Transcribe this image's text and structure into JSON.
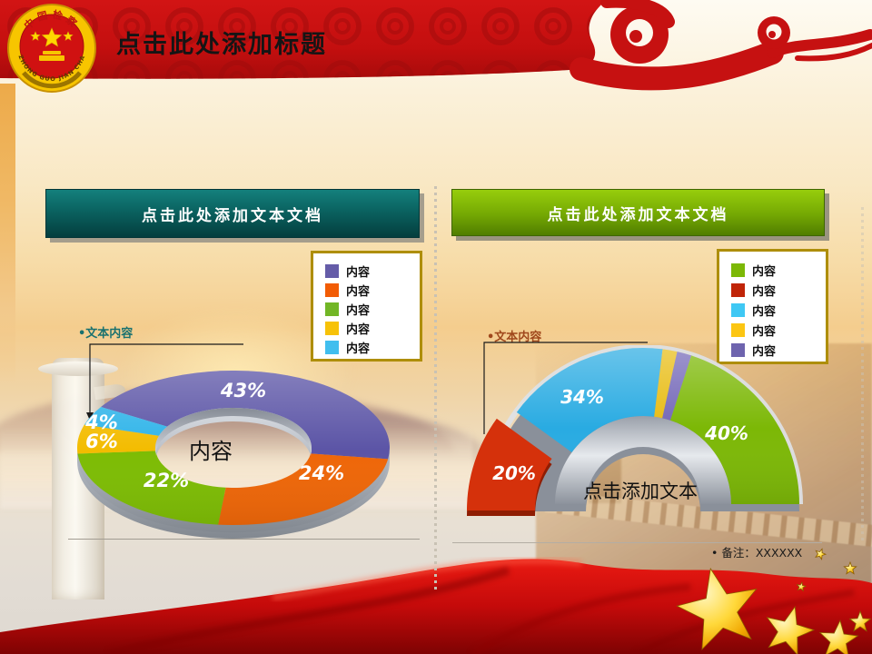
{
  "banner": {
    "title": "点击此处添加标题",
    "emblem": {
      "top_text": "中国检察",
      "bottom_text": "ZHONG GUO JIAN CHA"
    }
  },
  "left_panel": {
    "header_label": "点击此处添加文本文档",
    "callout_label": "•文本内容",
    "legend": {
      "items": [
        {
          "label": "内容",
          "color": "#655CA8"
        },
        {
          "label": "内容",
          "color": "#F25C05"
        },
        {
          "label": "内容",
          "color": "#72B626"
        },
        {
          "label": "内容",
          "color": "#F7C208"
        },
        {
          "label": "内容",
          "color": "#41BEEE"
        }
      ]
    }
  },
  "right_panel": {
    "header_label": "点击此处添加文本文档",
    "callout_label": "•文本内容",
    "note": "• 备注：XXXXXX",
    "legend": {
      "items": [
        {
          "label": "内容",
          "color": "#7CB806"
        },
        {
          "label": "内容",
          "color": "#C02508"
        },
        {
          "label": "内容",
          "color": "#3FC8F4"
        },
        {
          "label": "内容",
          "color": "#FCC613"
        },
        {
          "label": "内容",
          "color": "#6E64AE"
        }
      ]
    }
  },
  "chart_data": [
    {
      "type": "pie",
      "variant": "3d-donut",
      "panel": "left",
      "title": "点击此处添加文本文档",
      "labels": [
        "内容",
        "内容",
        "内容",
        "内容",
        "内容"
      ],
      "values": [
        43,
        24,
        22,
        6,
        4
      ],
      "value_labels": [
        "43%",
        "24%",
        "22%",
        "6%",
        "4%"
      ],
      "colors": [
        "#5B54A6",
        "#EE6608",
        "#7DBC04",
        "#F3BC00",
        "#2FB4E9"
      ],
      "center_label": "内容",
      "start_angle_deg": 212,
      "annotation": "•文本内容",
      "legend_position": "upper-right"
    },
    {
      "type": "pie",
      "variant": "3d-half-donut",
      "panel": "right",
      "title": "点击此处添加文本文档",
      "labels": [
        "内容",
        "内容",
        "内容",
        "内容",
        "内容"
      ],
      "values": [
        20,
        34,
        3,
        3,
        40
      ],
      "value_labels": [
        "20%",
        "34%",
        "",
        "",
        "40%"
      ],
      "colors": [
        "#D5310B",
        "#29ABE2",
        "#E8BC13",
        "#7468B8",
        "#7CB806"
      ],
      "center_label": "点击添加文本",
      "exploded_slice_index": 0,
      "annotation": "•文本内容",
      "legend_position": "upper-right"
    }
  ]
}
